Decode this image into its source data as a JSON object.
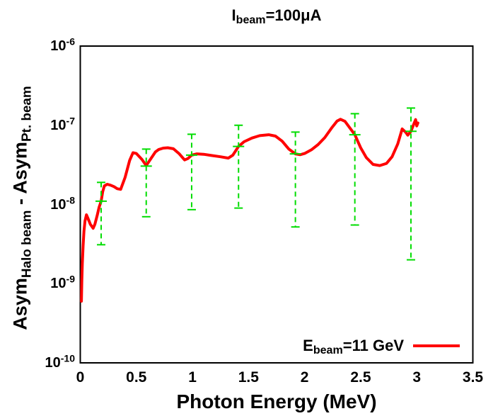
{
  "title": {
    "pre": "I",
    "sub": "beam",
    "post": "=100μA"
  },
  "axes": {
    "x": {
      "label": "Photon Energy (MeV)",
      "ticks": [
        "0",
        "0.5",
        "1",
        "1.5",
        "2",
        "2.5",
        "3",
        "3.5"
      ],
      "range": [
        0,
        3.5
      ]
    },
    "y": {
      "scale": "log",
      "tick_exponents": [
        -6,
        -7,
        -8,
        -9,
        -10
      ],
      "label_parts": {
        "a1": "Asym",
        "sub1": "Halo beam",
        "mid": " - ",
        "a2": "Asym",
        "sub2": "Pt. beam"
      }
    }
  },
  "legend": {
    "pre": "E",
    "sub": "beam",
    "post": "=11 GeV"
  },
  "colors": {
    "background": "#ffffff",
    "frame": "#000000",
    "text": "#000000",
    "curve": "#ff0000",
    "error_bars": "#00dd00"
  },
  "chart_data": {
    "type": "line",
    "title": "I_beam=100uA",
    "xlabel": "Photon Energy (MeV)",
    "ylabel": "Asym_Halo beam - Asym_Pt. beam",
    "x_range": [
      0,
      3.5
    ],
    "y_scale": "log",
    "y_range": [
      1e-10,
      1e-06
    ],
    "grid": false,
    "legend_position": "bottom-right",
    "series": [
      {
        "name": "E_beam=11 GeV",
        "color": "#ff0000",
        "points": [
          [
            0.01,
            6e-10
          ],
          [
            0.014,
            1.1e-09
          ],
          [
            0.018,
            1.8e-09
          ],
          [
            0.025,
            3e-09
          ],
          [
            0.033,
            4.6e-09
          ],
          [
            0.042,
            6.2e-09
          ],
          [
            0.055,
            7.4e-09
          ],
          [
            0.07,
            6.6e-09
          ],
          [
            0.09,
            5.6e-09
          ],
          [
            0.115,
            5e-09
          ],
          [
            0.13,
            5.6e-09
          ],
          [
            0.15,
            7.2e-09
          ],
          [
            0.168,
            9.2e-09
          ],
          [
            0.186,
            1.1e-08
          ],
          [
            0.2,
            1.45e-08
          ],
          [
            0.215,
            1.72e-08
          ],
          [
            0.24,
            1.8e-08
          ],
          [
            0.27,
            1.75e-08
          ],
          [
            0.3,
            1.68e-08
          ],
          [
            0.33,
            1.58e-08
          ],
          [
            0.36,
            1.55e-08
          ],
          [
            0.4,
            2.2e-08
          ],
          [
            0.44,
            3.6e-08
          ],
          [
            0.47,
            4.5e-08
          ],
          [
            0.5,
            4.4e-08
          ],
          [
            0.55,
            3.7e-08
          ],
          [
            0.588,
            3.1e-08
          ],
          [
            0.63,
            3.8e-08
          ],
          [
            0.67,
            4.6e-08
          ],
          [
            0.7,
            4.95e-08
          ],
          [
            0.74,
            5.15e-08
          ],
          [
            0.78,
            5.2e-08
          ],
          [
            0.83,
            5.05e-08
          ],
          [
            0.88,
            4.4e-08
          ],
          [
            0.93,
            3.65e-08
          ],
          [
            0.96,
            3.8e-08
          ],
          [
            0.993,
            4.2e-08
          ],
          [
            1.04,
            4.35e-08
          ],
          [
            1.1,
            4.3e-08
          ],
          [
            1.17,
            4.15e-08
          ],
          [
            1.25,
            4e-08
          ],
          [
            1.32,
            3.85e-08
          ],
          [
            1.36,
            4.2e-08
          ],
          [
            1.411,
            5.4e-08
          ],
          [
            1.46,
            6.2e-08
          ],
          [
            1.53,
            6.9e-08
          ],
          [
            1.6,
            7.4e-08
          ],
          [
            1.68,
            7.6e-08
          ],
          [
            1.74,
            7.3e-08
          ],
          [
            1.8,
            6.3e-08
          ],
          [
            1.86,
            5e-08
          ],
          [
            1.918,
            4.35e-08
          ],
          [
            1.96,
            4.25e-08
          ],
          [
            2.0,
            4.4e-08
          ],
          [
            2.06,
            4.9e-08
          ],
          [
            2.12,
            5.7e-08
          ],
          [
            2.18,
            7e-08
          ],
          [
            2.24,
            9.2e-08
          ],
          [
            2.29,
            1.13e-07
          ],
          [
            2.32,
            1.19e-07
          ],
          [
            2.36,
            1.12e-07
          ],
          [
            2.4,
            9.4e-08
          ],
          [
            2.448,
            7.6e-08
          ],
          [
            2.5,
            5.2e-08
          ],
          [
            2.55,
            3.9e-08
          ],
          [
            2.61,
            3.2e-08
          ],
          [
            2.67,
            3.1e-08
          ],
          [
            2.73,
            3.3e-08
          ],
          [
            2.78,
            4e-08
          ],
          [
            2.83,
            5.8e-08
          ],
          [
            2.87,
            9e-08
          ],
          [
            2.9,
            8.2e-08
          ],
          [
            2.92,
            7.5e-08
          ],
          [
            2.948,
            8.4e-08
          ],
          [
            2.975,
            1.05e-07
          ],
          [
            2.99,
            1.18e-07
          ],
          [
            3.0,
            9.8e-08
          ],
          [
            3.01,
            1.07e-07
          ]
        ]
      }
    ],
    "error_bars": {
      "color": "#00dd00",
      "points": [
        {
          "x": 0.186,
          "y": 1.1e-08,
          "lo": 3.1e-09,
          "hi": 1.9e-08
        },
        {
          "x": 0.588,
          "y": 3.05e-08,
          "lo": 7e-09,
          "hi": 5e-08
        },
        {
          "x": 0.993,
          "y": 4.2e-08,
          "lo": 8.6e-09,
          "hi": 7.7e-08
        },
        {
          "x": 1.411,
          "y": 5.4e-08,
          "lo": 9e-09,
          "hi": 1e-07
        },
        {
          "x": 1.918,
          "y": 4.35e-08,
          "lo": 5.2e-09,
          "hi": 8.2e-08
        },
        {
          "x": 2.448,
          "y": 7.6e-08,
          "lo": 5.5e-09,
          "hi": 1.4e-07
        },
        {
          "x": 2.948,
          "y": 8.4e-08,
          "lo": 2e-09,
          "hi": 1.65e-07
        }
      ]
    }
  }
}
